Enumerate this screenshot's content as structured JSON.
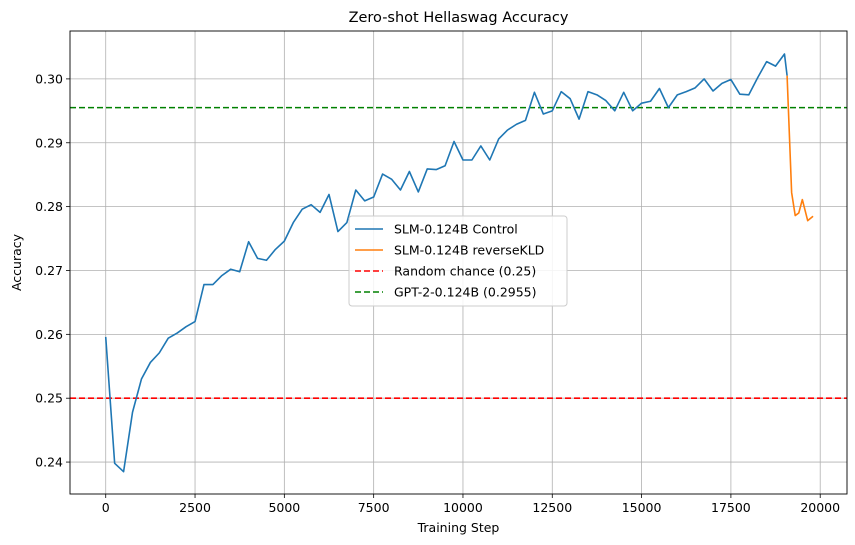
{
  "chart_data": {
    "type": "line",
    "title": "Zero-shot Hellaswag Accuracy",
    "xlabel": "Training Step",
    "ylabel": "Accuracy",
    "xlim": [
      -1000,
      20750
    ],
    "ylim": [
      0.235,
      0.3075
    ],
    "xticks": [
      0,
      2500,
      5000,
      7500,
      10000,
      12500,
      15000,
      17500,
      20000
    ],
    "xtick_labels": [
      "0",
      "2500",
      "5000",
      "7500",
      "10000",
      "12500",
      "15000",
      "17500",
      "20000"
    ],
    "yticks": [
      0.24,
      0.25,
      0.26,
      0.27,
      0.28,
      0.29,
      0.3
    ],
    "ytick_labels": [
      "0.24",
      "0.25",
      "0.26",
      "0.27",
      "0.28",
      "0.29",
      "0.30"
    ],
    "grid": true,
    "legend_position": "center",
    "series": [
      {
        "name": "SLM-0.124B Control",
        "color": "#1f77b4",
        "style": "solid",
        "x": [
          0,
          250,
          500,
          750,
          1000,
          1250,
          1500,
          1750,
          2000,
          2250,
          2500,
          2750,
          3000,
          3250,
          3500,
          3750,
          4000,
          4250,
          4500,
          4750,
          5000,
          5250,
          5500,
          5750,
          6000,
          6250,
          6500,
          6750,
          7000,
          7250,
          7500,
          7750,
          8000,
          8250,
          8500,
          8750,
          9000,
          9250,
          9500,
          9750,
          10000,
          10250,
          10500,
          10750,
          11000,
          11250,
          11500,
          11750,
          12000,
          12250,
          12500,
          12750,
          13000,
          13250,
          13500,
          13750,
          14000,
          14250,
          14500,
          14750,
          15000,
          15250,
          15500,
          15750,
          16000,
          16250,
          16500,
          16750,
          17000,
          17250,
          17500,
          17750,
          18000,
          18250,
          18500,
          18750,
          19000,
          19073
        ],
        "y": [
          0.2596,
          0.2398,
          0.2385,
          0.2478,
          0.253,
          0.2556,
          0.2571,
          0.2594,
          0.2602,
          0.2612,
          0.262,
          0.2678,
          0.2678,
          0.2692,
          0.2702,
          0.2698,
          0.2745,
          0.2719,
          0.2716,
          0.2733,
          0.2746,
          0.2775,
          0.2796,
          0.2803,
          0.2791,
          0.2819,
          0.2761,
          0.2775,
          0.2826,
          0.2809,
          0.2815,
          0.2851,
          0.2843,
          0.2826,
          0.2855,
          0.2823,
          0.2859,
          0.2858,
          0.2864,
          0.2902,
          0.2873,
          0.2873,
          0.2895,
          0.2873,
          0.2906,
          0.292,
          0.2929,
          0.2935,
          0.2979,
          0.2945,
          0.295,
          0.298,
          0.2969,
          0.2937,
          0.298,
          0.2975,
          0.2966,
          0.295,
          0.2979,
          0.295,
          0.2962,
          0.2965,
          0.2985,
          0.2955,
          0.2975,
          0.298,
          0.2986,
          0.3,
          0.2981,
          0.2993,
          0.2999,
          0.2976,
          0.2975,
          0.3002,
          0.3027,
          0.302,
          0.3039,
          0.3005
        ]
      },
      {
        "name": "SLM-0.124B reverseKLD",
        "color": "#ff7f0e",
        "style": "solid",
        "x": [
          19073,
          19200,
          19300,
          19400,
          19500,
          19650,
          19800
        ],
        "y": [
          0.3005,
          0.2822,
          0.2786,
          0.279,
          0.2811,
          0.2778,
          0.2785
        ]
      },
      {
        "name": "Random chance (0.25)",
        "color": "#ff0000",
        "style": "dashed",
        "hline": 0.25
      },
      {
        "name": "GPT-2-0.124B (0.2955)",
        "color": "#008000",
        "style": "dashed",
        "hline": 0.2955
      }
    ]
  }
}
